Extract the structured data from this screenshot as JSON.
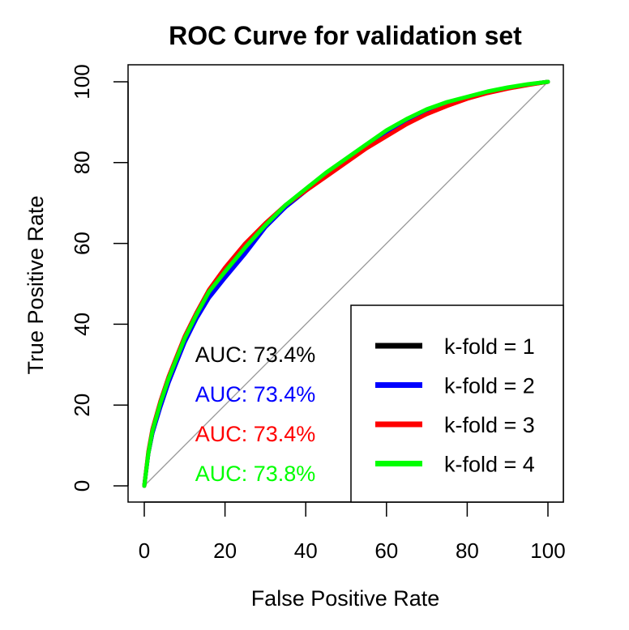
{
  "chart_data": {
    "type": "line",
    "title": "ROC Curve for validation set",
    "xlabel": "False Positive Rate",
    "ylabel": "True Positive Rate",
    "xlim": [
      0,
      100
    ],
    "ylim": [
      0,
      100
    ],
    "xticks": [
      "0",
      "20",
      "40",
      "60",
      "80",
      "100"
    ],
    "yticks": [
      "0",
      "20",
      "40",
      "60",
      "80",
      "100"
    ],
    "grid": false,
    "legend_position": "bottom-right",
    "diagonal_reference": true,
    "annotations": [
      "AUC: 73.4%",
      "AUC: 73.4%",
      "AUC: 73.4%",
      "AUC: 73.8%"
    ],
    "series": [
      {
        "name": "k-fold = 1",
        "color": "#000000",
        "x": [
          0,
          1,
          2,
          4,
          6,
          8,
          10,
          13,
          16,
          20,
          25,
          30,
          35,
          40,
          45,
          50,
          55,
          60,
          65,
          70,
          75,
          80,
          85,
          90,
          95,
          100
        ],
        "y": [
          0,
          8,
          13,
          20,
          26,
          31,
          36,
          42,
          47,
          52,
          58,
          64.5,
          69,
          73,
          77,
          80.5,
          84,
          87,
          90,
          92.5,
          94.5,
          96,
          97.5,
          98.5,
          99.3,
          100
        ]
      },
      {
        "name": "k-fold = 2",
        "color": "#0000ff",
        "x": [
          0,
          1,
          2,
          4,
          6,
          8,
          10,
          13,
          16,
          20,
          25,
          30,
          35,
          40,
          45,
          50,
          55,
          60,
          65,
          70,
          75,
          80,
          85,
          90,
          95,
          100
        ],
        "y": [
          0,
          8,
          13,
          19.5,
          25.5,
          30.5,
          35.5,
          41.5,
          46.5,
          51.5,
          57.5,
          64,
          69,
          73,
          77,
          80.5,
          84,
          87.5,
          90.5,
          92.8,
          94.8,
          96.2,
          97.5,
          98.5,
          99.3,
          100
        ]
      },
      {
        "name": "k-fold = 3",
        "color": "#ff0000",
        "x": [
          0,
          1,
          2,
          4,
          6,
          8,
          10,
          13,
          16,
          20,
          25,
          30,
          35,
          40,
          45,
          50,
          55,
          60,
          65,
          70,
          75,
          80,
          85,
          90,
          95,
          100
        ],
        "y": [
          0,
          8.5,
          14,
          21,
          27,
          32,
          37,
          43,
          48.5,
          54,
          60,
          65,
          69.5,
          73,
          76.5,
          80,
          83.5,
          86.5,
          89.5,
          92,
          94,
          95.8,
          97.2,
          98.3,
          99.2,
          100
        ]
      },
      {
        "name": "k-fold = 4",
        "color": "#00ff00",
        "x": [
          0,
          1,
          2,
          4,
          6,
          8,
          10,
          13,
          16,
          20,
          25,
          30,
          35,
          40,
          45,
          50,
          55,
          60,
          65,
          70,
          75,
          80,
          85,
          90,
          95,
          100
        ],
        "y": [
          0,
          8,
          13.5,
          20.5,
          26.5,
          31.5,
          36.5,
          42.5,
          48,
          53,
          59,
          64.5,
          69.5,
          73.5,
          77.5,
          81,
          84.5,
          88,
          90.8,
          93.2,
          95,
          96.3,
          97.6,
          98.6,
          99.4,
          100
        ]
      }
    ]
  }
}
